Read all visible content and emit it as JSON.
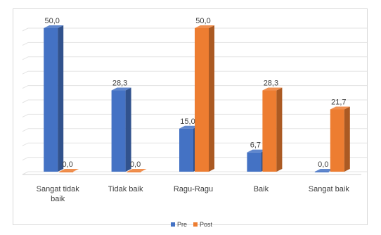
{
  "chart_data": {
    "type": "bar",
    "categories": [
      "Sangat tidak baik",
      "Tidak baik",
      "Ragu-Ragu",
      "Baik",
      "Sangat baik"
    ],
    "category_lines": [
      [
        "Sangat tidak",
        "baik"
      ],
      [
        "Tidak baik"
      ],
      [
        "Ragu-Ragu"
      ],
      [
        "Baik"
      ],
      [
        "Sangat baik"
      ]
    ],
    "series": [
      {
        "name": "Pre",
        "values": [
          50.0,
          28.3,
          15.0,
          6.7,
          0.0
        ],
        "labels": [
          "50,0",
          "28,3",
          "15,0",
          "6,7",
          "0,0"
        ],
        "color": "#4472c4"
      },
      {
        "name": "Post",
        "values": [
          0.0,
          0.0,
          50.0,
          28.3,
          21.7
        ],
        "labels": [
          "0,0",
          "0,0",
          "50,0",
          "28,3",
          "21,7"
        ],
        "color": "#ed7d31"
      }
    ],
    "ylim": [
      0,
      50
    ],
    "grid": true,
    "style": "3d-column",
    "legend_position": "bottom"
  }
}
